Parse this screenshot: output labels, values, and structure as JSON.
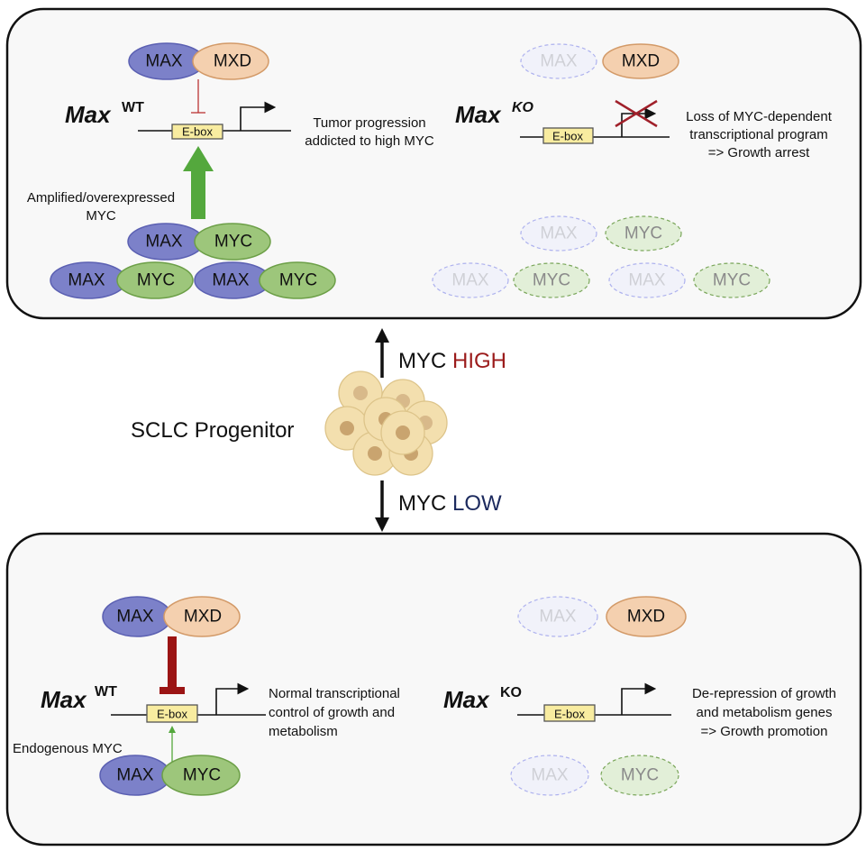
{
  "colors": {
    "max": "#7c81c9",
    "mxd": "#f4d0af",
    "myc": "#9dc67b",
    "high": "#9b1b1b",
    "low": "#1c2a5e",
    "inhibit": "#9b1414",
    "activate": "#54a83d"
  },
  "proteins": {
    "max": "MAX",
    "mxd": "MXD",
    "myc": "MYC"
  },
  "ebox": "E-box",
  "gene": {
    "name": "Max",
    "wt": "WT",
    "ko": "KO"
  },
  "top": {
    "wt_description": [
      "Tumor progression",
      "addicted to high MYC"
    ],
    "wt_myc_label": [
      "Amplified/overexpressed",
      "MYC"
    ],
    "ko_description": [
      "Loss of MYC-dependent",
      "transcriptional program",
      "=> Growth arrest"
    ]
  },
  "middle": {
    "progenitor": "SCLC Progenitor",
    "up_prefix": "MYC",
    "up_level": "HIGH",
    "down_prefix": "MYC",
    "down_level": "LOW"
  },
  "bottom": {
    "wt_description": [
      "Normal transcriptional",
      "control of growth and",
      "metabolism"
    ],
    "wt_myc_label": "Endogenous MYC",
    "ko_description": [
      "De-repression of growth",
      "and metabolism genes",
      "=> Growth promotion"
    ]
  }
}
